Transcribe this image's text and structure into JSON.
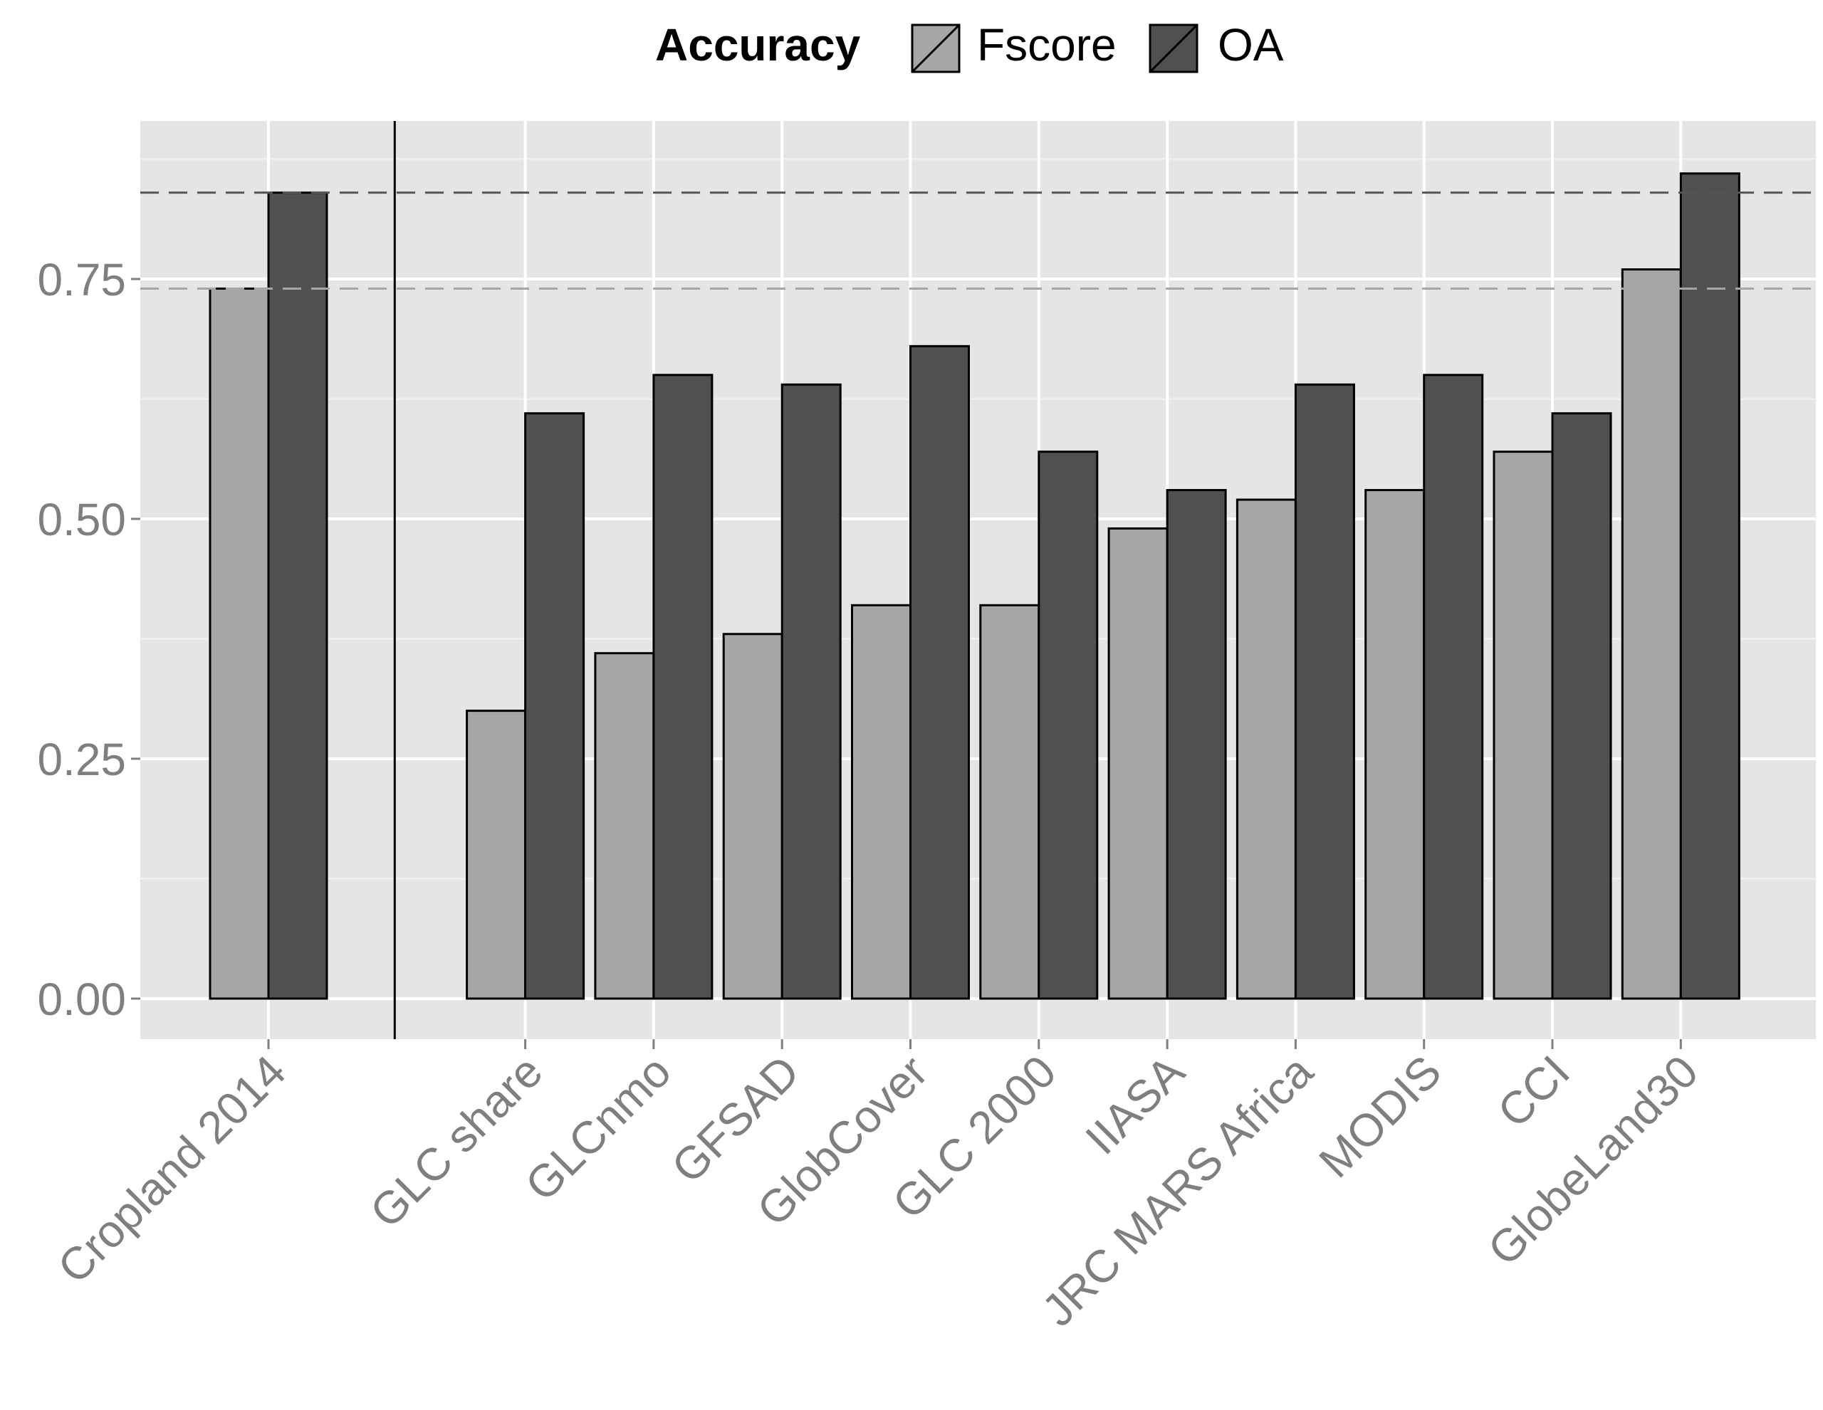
{
  "chart_data": {
    "type": "bar",
    "title": "",
    "xlabel": "",
    "ylabel": "",
    "ylim": [
      -0.09,
      0.91
    ],
    "y_ticks": [
      "0.00",
      "0.25",
      "0.50",
      "0.75"
    ],
    "y_tick_values": [
      0,
      0.25,
      0.5,
      0.75
    ],
    "grid": true,
    "legend": {
      "title": "Accuracy",
      "placement": "top",
      "entries": [
        "Fscore",
        "OA"
      ]
    },
    "categories": [
      "Cropland 2014",
      "GLC share",
      "GLCnmo",
      "GFSAD",
      "GlobCover",
      "GLC 2000",
      "IIASA",
      "JRC MARS Africa",
      "MODIS",
      "CCI",
      "GlobeLand30"
    ],
    "series": [
      {
        "name": "Fscore",
        "color": "#a6a6a6",
        "values": [
          0.74,
          0.3,
          0.36,
          0.38,
          0.41,
          0.41,
          0.49,
          0.52,
          0.53,
          0.57,
          0.76
        ]
      },
      {
        "name": "OA",
        "color": "#4f514f",
        "values": [
          0.84,
          0.61,
          0.65,
          0.64,
          0.68,
          0.57,
          0.53,
          0.64,
          0.65,
          0.61,
          0.86
        ]
      }
    ],
    "reference_lines": [
      {
        "value": 0.84,
        "style": "dashed",
        "color": "#555555"
      },
      {
        "value": 0.74,
        "style": "dashed",
        "color": "#a6a6a6"
      }
    ],
    "separator_after_category": "Cropland 2014",
    "colors": {
      "panel_background": "#e5e5e5",
      "grid": "#ffffff",
      "text": "#7f7f7f"
    }
  }
}
